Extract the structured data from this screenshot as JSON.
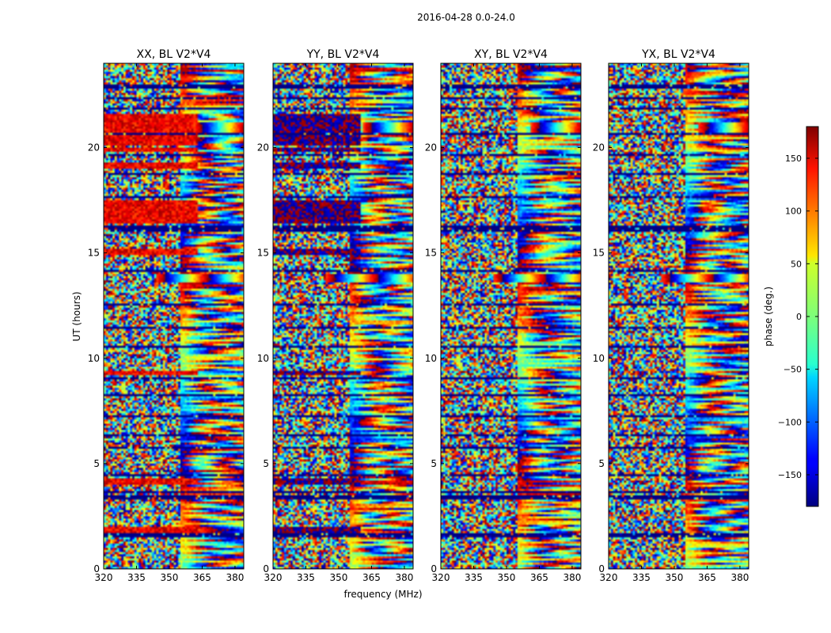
{
  "chart_data": {
    "type": "heatmap",
    "title": "2016-04-28 0.0-24.0",
    "xlabel": "frequency (MHz)",
    "ylabel": "UT (hours)",
    "xlim": [
      320,
      384
    ],
    "ylim": [
      0,
      24
    ],
    "xticks": [
      320,
      335,
      350,
      365,
      380
    ],
    "yticks": [
      0,
      5,
      10,
      15,
      20
    ],
    "colormap": "jet",
    "colorbar": {
      "label": "phase (deg.)",
      "range": [
        -180,
        180
      ],
      "ticks": [
        -150,
        -100,
        -50,
        0,
        50,
        100,
        150
      ],
      "tick_labels": [
        "−150",
        "−100",
        "−50",
        "0",
        "50",
        "100",
        "150"
      ]
    },
    "panels": [
      {
        "title": "XX, BL V2*V4",
        "base_phase": 140,
        "noise_band_end_mhz": 363
      },
      {
        "title": "YY, BL V2*V4",
        "base_phase": -175,
        "noise_band_end_mhz": 360
      },
      {
        "title": "XY, BL V2*V4",
        "base_phase": null,
        "noise_band_end_mhz": null
      },
      {
        "title": "YX, BL V2*V4",
        "base_phase": null,
        "noise_band_end_mhz": null
      }
    ],
    "flagged_intervals_ut": [
      [
        1.55,
        1.7
      ],
      [
        3.35,
        3.45
      ],
      [
        3.6,
        3.7
      ],
      [
        4.4,
        4.5
      ],
      [
        5.7,
        5.8
      ],
      [
        6.3,
        6.4
      ],
      [
        7.2,
        7.3
      ],
      [
        8.2,
        8.3
      ],
      [
        9.0,
        9.1
      ],
      [
        10.5,
        10.6
      ],
      [
        11.4,
        11.5
      ],
      [
        12.5,
        12.6
      ],
      [
        14.1,
        14.2
      ],
      [
        16.05,
        16.35
      ],
      [
        17.6,
        17.7
      ],
      [
        18.7,
        18.8
      ],
      [
        19.6,
        19.7
      ],
      [
        20.6,
        20.7
      ],
      [
        21.8,
        21.9
      ],
      [
        22.3,
        22.4
      ],
      [
        22.85,
        23.0
      ]
    ],
    "coherent_intervals_ut": [
      [
        1.7,
        2.0
      ],
      [
        4.0,
        4.3
      ],
      [
        9.2,
        9.4
      ],
      [
        14.9,
        15.2
      ],
      [
        16.4,
        17.5
      ],
      [
        19.0,
        19.3
      ],
      [
        19.8,
        20.0
      ],
      [
        20.1,
        21.6
      ]
    ],
    "fringe_events": [
      {
        "ut": 13.8,
        "freq_mhz": 358
      },
      {
        "ut": 20.95,
        "freq_mhz": 375
      }
    ]
  }
}
